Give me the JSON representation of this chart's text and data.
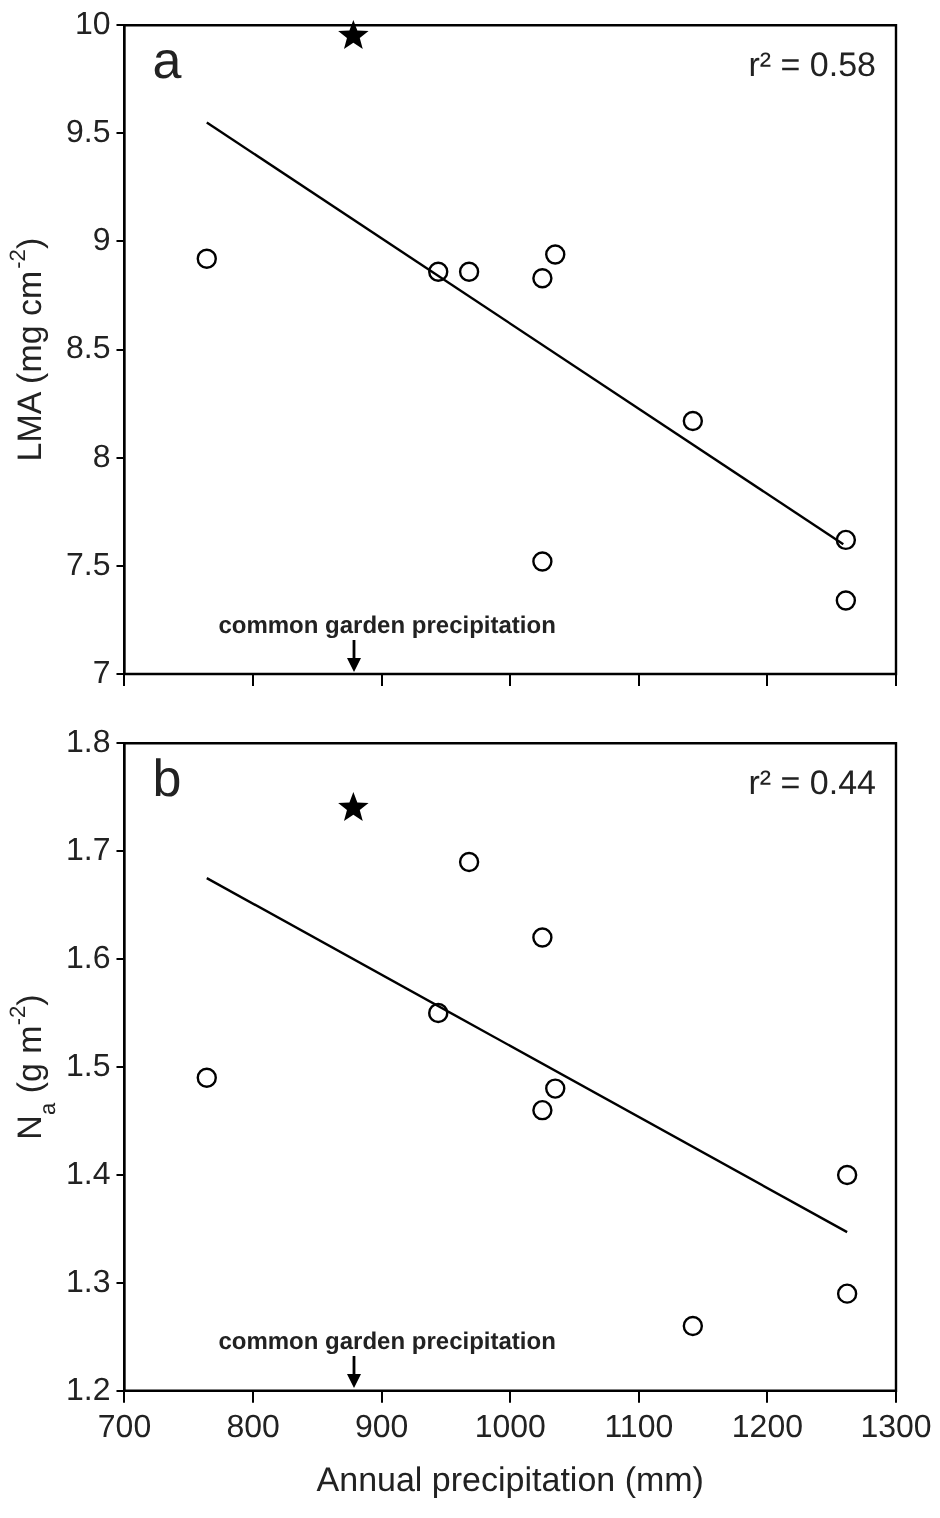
{
  "chart_data": [
    {
      "type": "scatter",
      "ylabel": "LMA (mg cm$^{-2}$)",
      "xlim": [
        700,
        1300
      ],
      "xticks": [
        700,
        800,
        900,
        1000,
        1100,
        1200,
        1300
      ],
      "ylim": [
        7,
        10
      ],
      "yticks": [
        7,
        7.5,
        8,
        8.5,
        9,
        9.5,
        10
      ],
      "tick_labels": "y",
      "grid": false,
      "legend": false,
      "annotations": [
        "a",
        "r² = 0.58",
        "common garden precipitation"
      ],
      "series": [
        {
          "color": "#000000",
          "marker": "circle",
          "x": [
            764,
            944,
            968,
            1025,
            1035,
            1025,
            1142,
            1261,
            1261
          ],
          "values": [
            8.92,
            8.86,
            8.86,
            8.83,
            8.94,
            7.52,
            8.17,
            7.62,
            7.34
          ]
        },
        {
          "color": "#000000",
          "marker": "star",
          "x": [
            878
          ],
          "values": [
            9.95
          ]
        },
        {
          "type": "line",
          "color": "#000000",
          "marker": "none",
          "x": [
            764,
            1259
          ],
          "values": [
            9.55,
            7.6
          ]
        }
      ]
    },
    {
      "type": "scatter",
      "xlabel": "Annual precipitation (mm)",
      "ylabel": "N$_{a}$ (g m$^{-2}$)",
      "xlim": [
        700,
        1300
      ],
      "xticks": [
        700,
        800,
        900,
        1000,
        1100,
        1200,
        1300
      ],
      "ylim": [
        1.2,
        1.8
      ],
      "yticks": [
        1.2,
        1.3,
        1.4,
        1.5,
        1.6,
        1.7,
        1.8
      ],
      "grid": false,
      "legend": false,
      "annotations": [
        "b",
        "r² = 0.44",
        "common garden precipitation"
      ],
      "series": [
        {
          "color": "#000000",
          "marker": "circle",
          "x": [
            764,
            944,
            968,
            1025,
            1025,
            1035,
            1142,
            1262,
            1262
          ],
          "values": [
            1.49,
            1.55,
            1.69,
            1.62,
            1.46,
            1.48,
            1.26,
            1.4,
            1.29
          ]
        },
        {
          "color": "#000000",
          "marker": "star",
          "x": [
            878
          ],
          "values": [
            1.74
          ]
        },
        {
          "type": "line",
          "color": "#000000",
          "marker": "none",
          "x": [
            764,
            1262
          ],
          "values": [
            1.675,
            1.347
          ]
        }
      ]
    }
  ]
}
